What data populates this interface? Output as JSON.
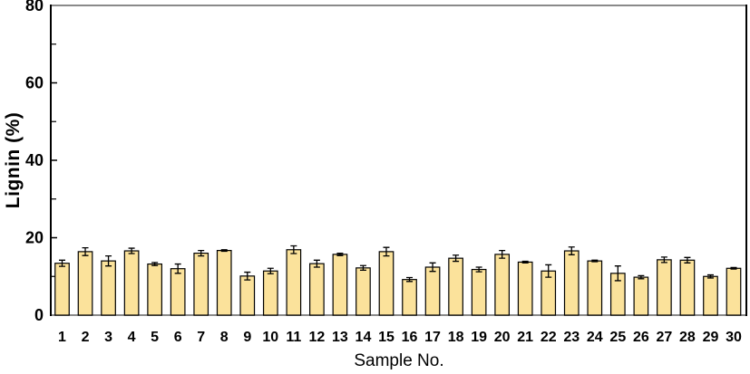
{
  "figure": {
    "background": "#ffffff"
  },
  "chart_data": {
    "type": "bar",
    "title": "",
    "xlabel": "Sample No.",
    "ylabel": "Lignin (%)",
    "ylim": [
      0,
      80
    ],
    "yticks_major": [
      0,
      20,
      40,
      60,
      80
    ],
    "yticks_minor": [
      10,
      30,
      50,
      70
    ],
    "grid": "off",
    "legend": "none",
    "categories": [
      "1",
      "2",
      "3",
      "4",
      "5",
      "6",
      "7",
      "8",
      "9",
      "10",
      "11",
      "12",
      "13",
      "14",
      "15",
      "16",
      "17",
      "18",
      "19",
      "20",
      "21",
      "22",
      "23",
      "24",
      "25",
      "26",
      "27",
      "28",
      "29",
      "30"
    ],
    "values": [
      13.4,
      16.4,
      14.0,
      16.6,
      13.2,
      12.0,
      16.0,
      16.7,
      10.1,
      11.4,
      16.9,
      13.3,
      15.7,
      12.2,
      16.4,
      9.2,
      12.4,
      14.7,
      11.8,
      15.7,
      13.7,
      11.4,
      16.6,
      14.0,
      10.8,
      9.8,
      14.3,
      14.2,
      10.0,
      12.1
    ],
    "errors": [
      0.8,
      1.0,
      1.3,
      0.7,
      0.4,
      1.2,
      0.7,
      0.2,
      1.0,
      0.7,
      1.0,
      0.9,
      0.3,
      0.6,
      1.1,
      0.5,
      1.1,
      0.8,
      0.6,
      1.0,
      0.2,
      1.6,
      1.0,
      0.2,
      1.9,
      0.4,
      0.7,
      0.7,
      0.4,
      0.2
    ],
    "style": {
      "bar_fill": "#FBE29B",
      "bar_stroke": "#000000",
      "error_color": "#000000",
      "frame_top_color": "#8a8a8a",
      "frame_bottom_color": "#8a8a8a",
      "frame_left_color": "#000000",
      "frame_right_color": "#000000",
      "text_color": "#000000"
    }
  }
}
